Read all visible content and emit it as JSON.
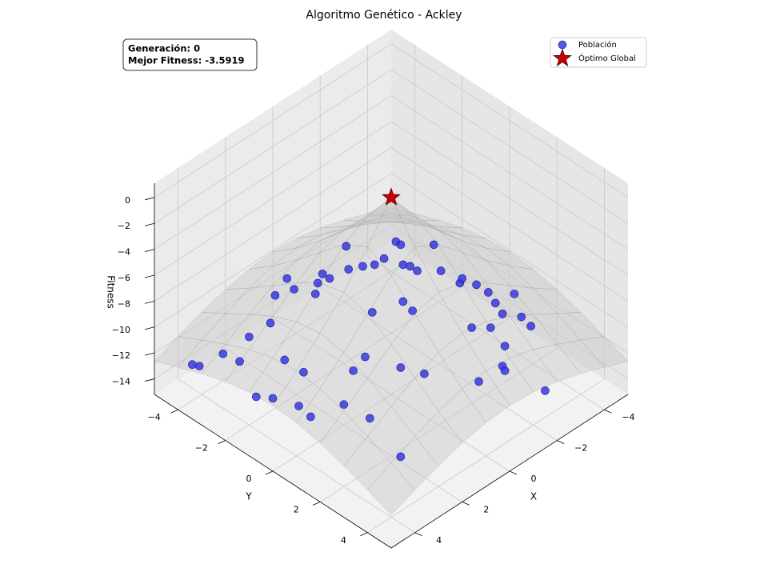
{
  "chart_data": {
    "type": "scatter3d",
    "title": "Algoritmo Genético - Ackley",
    "xlabel": "X",
    "ylabel": "Y",
    "zlabel": "Fitness",
    "annotation": [
      "Generación: 0",
      "Mejor Fitness: -3.5919"
    ],
    "legend": "upper right",
    "grid": true,
    "xlim": [
      -5,
      5
    ],
    "ylim": [
      -5,
      5
    ],
    "zlim": [
      -15.2,
      1.1
    ],
    "xticks": [
      {
        "value": -4,
        "label": "−4"
      },
      {
        "value": -2,
        "label": "−2"
      },
      0,
      2,
      4
    ],
    "yticks": [
      {
        "value": -4,
        "label": "−4"
      },
      {
        "value": -2,
        "label": "−2"
      },
      0,
      2,
      4
    ],
    "zticks": [
      {
        "value": -14,
        "label": "−14"
      },
      {
        "value": -12,
        "label": "−12"
      },
      {
        "value": -10,
        "label": "−10"
      },
      {
        "value": -8,
        "label": "−8"
      },
      {
        "value": -6,
        "label": "−6"
      },
      {
        "value": -4,
        "label": "−4"
      },
      {
        "value": -2,
        "label": "−2"
      },
      0
    ],
    "surface": {
      "color": "#c8c8c8",
      "x": [
        -5,
        -4,
        -3,
        -2,
        -1,
        0,
        1,
        2,
        3,
        4,
        5
      ],
      "y": [
        -5,
        -4,
        -3,
        -2,
        -1,
        0,
        1,
        2,
        3,
        4,
        5
      ],
      "z": [
        [
          -12.64,
          -11.91,
          -11.23,
          -10.66,
          -10.28,
          -10.14,
          -10.28,
          -10.66,
          -11.23,
          -11.91,
          -12.64
        ],
        [
          -11.91,
          -11.01,
          -10.14,
          -9.37,
          -8.84,
          -8.64,
          -8.84,
          -9.37,
          -10.14,
          -11.01,
          -11.91
        ],
        [
          -11.23,
          -10.14,
          -9.02,
          -7.99,
          -7.21,
          -6.92,
          -7.21,
          -7.99,
          -9.02,
          -10.14,
          -11.23
        ],
        [
          -10.66,
          -9.37,
          -7.99,
          -6.59,
          -5.42,
          -4.93,
          -5.42,
          -6.59,
          -7.99,
          -9.37,
          -10.66
        ],
        [
          -10.28,
          -8.84,
          -7.21,
          -5.42,
          -3.63,
          -2.64,
          -3.63,
          -5.42,
          -7.21,
          -8.84,
          -10.28
        ],
        [
          -10.14,
          -8.64,
          -6.92,
          -4.93,
          -2.64,
          0,
          -2.64,
          -4.93,
          -6.92,
          -8.64,
          -10.14
        ],
        [
          -10.28,
          -8.84,
          -7.21,
          -5.42,
          -3.63,
          -2.64,
          -3.63,
          -5.42,
          -7.21,
          -8.84,
          -10.28
        ],
        [
          -10.66,
          -9.37,
          -7.99,
          -6.59,
          -5.42,
          -4.93,
          -5.42,
          -6.59,
          -7.99,
          -9.37,
          -10.66
        ],
        [
          -11.23,
          -10.14,
          -9.02,
          -7.99,
          -7.21,
          -6.92,
          -7.21,
          -7.99,
          -9.02,
          -10.14,
          -11.23
        ],
        [
          -11.91,
          -11.01,
          -10.14,
          -9.37,
          -8.84,
          -8.64,
          -8.84,
          -9.37,
          -10.14,
          -11.01,
          -11.91
        ],
        [
          -12.64,
          -11.91,
          -11.23,
          -10.66,
          -10.28,
          -10.14,
          -10.28,
          -10.66,
          -11.23,
          -11.91,
          -12.64
        ]
      ]
    },
    "series": [
      {
        "name": "Población",
        "color": "#2e2ee0",
        "marker": "circle",
        "x": [
          -2.1,
          -3.3,
          -3.3,
          -4.0,
          -0.7,
          -1.4,
          -1.8,
          -2.1,
          -2.5,
          -2.7,
          -2.8,
          -2.8,
          -3.3,
          0.2,
          -0.7,
          -0.3,
          0.4,
          0.1,
          1.0,
          -3.3,
          -3.5,
          -3.6,
          -3.6,
          -4.1,
          -1.5,
          -3.4,
          -0.5,
          -1.4,
          -3.2,
          -3.5,
          2.0,
          -2.1,
          -2.5,
          -3.4,
          2.9,
          -2.2,
          4.0,
          3.9,
          2.9,
          1.1,
          4.9,
          5.0,
          2.9,
          1.8,
          0.7,
          0.4,
          -1.5,
          -1.4,
          -0.5,
          -1.6,
          4.7,
          4.4,
          4.1,
          3.1,
          4.2,
          3.0,
          3.6
        ],
        "y": [
          -4.0,
          -3.1,
          -2.9,
          -2.2,
          -3.6,
          -3.2,
          -3.0,
          -2.8,
          -2.8,
          -2.2,
          -2.0,
          -1.7,
          -1.2,
          -4.2,
          -3.3,
          -3.4,
          -3.7,
          -3.1,
          -3.9,
          -0.4,
          -0.5,
          0.0,
          0.5,
          1.1,
          -1.0,
          1.0,
          -1.3,
          -0.5,
          1.5,
          2.0,
          -3.1,
          1.3,
          1.7,
          2.5,
          -3.1,
          2.6,
          -3.1,
          -2.5,
          -1.6,
          0.0,
          -3.2,
          -3.4,
          -0.8,
          0.2,
          1.1,
          1.8,
          3.2,
          3.4,
          3.2,
          4.9,
          -1.0,
          -0.6,
          0.2,
          1.1,
          0.8,
          2.1,
          4.0
        ],
        "z": [
          -11,
          -11,
          -11,
          -11,
          -11,
          -11,
          -11,
          -11,
          -11,
          -11,
          -11,
          -11,
          -11,
          -11,
          -11,
          -11,
          -11,
          -11,
          -11,
          -11,
          -11,
          -11,
          -11,
          -11,
          -11,
          -11,
          -11,
          -11,
          -11,
          -11,
          -11,
          -11,
          -11,
          -11,
          -11,
          -11,
          -11,
          -11,
          -11,
          -11,
          -11,
          -11,
          -11,
          -11,
          -11,
          -11,
          -11,
          -11,
          -11,
          -11,
          -11,
          -11,
          -11,
          -11,
          -11,
          -11,
          -11
        ]
      },
      {
        "name": "Óptimo Global",
        "color": "#cc0000",
        "marker": "star",
        "x": [
          0
        ],
        "y": [
          0
        ],
        "z": [
          0
        ]
      }
    ]
  }
}
